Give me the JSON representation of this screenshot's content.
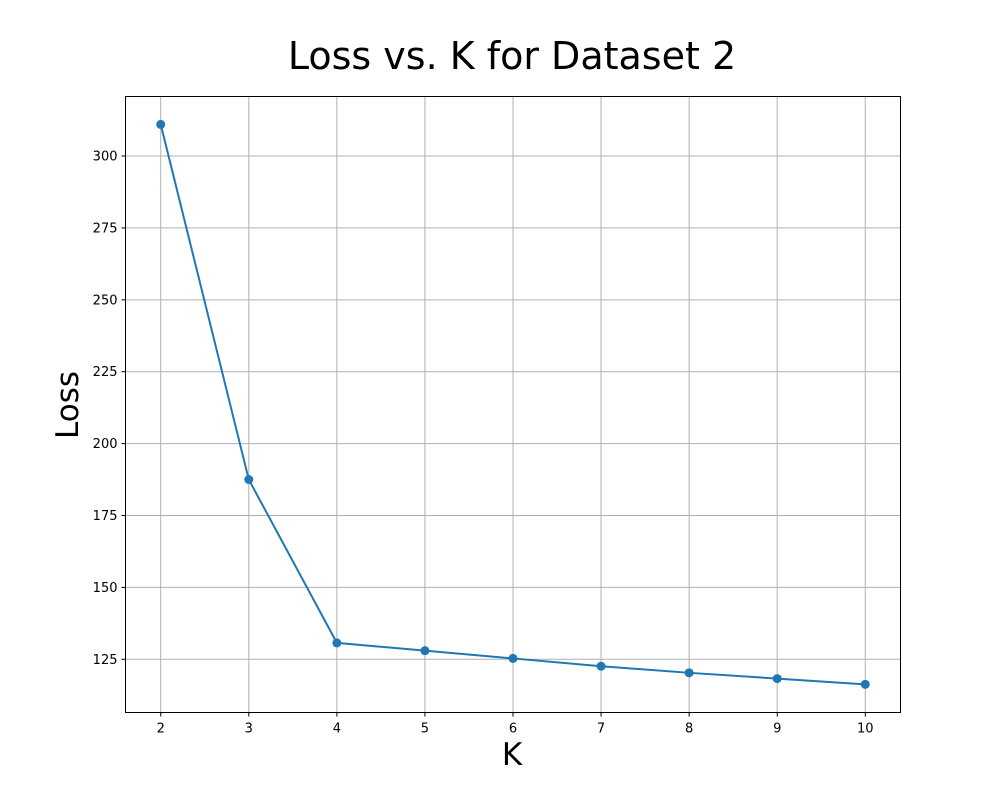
{
  "chart_data": {
    "type": "line",
    "title": "Loss vs. K for Dataset 2",
    "xlabel": "K",
    "ylabel": "Loss",
    "x": [
      2,
      3,
      4,
      5,
      6,
      7,
      8,
      9,
      10
    ],
    "series": [
      {
        "values": [
          311.0,
          187.5,
          130.7,
          128.0,
          125.3,
          122.6,
          120.3,
          118.3,
          116.3
        ],
        "color": "#1f77b4",
        "marker": "circle"
      }
    ],
    "xticks": [
      "2",
      "3",
      "4",
      "5",
      "6",
      "7",
      "8",
      "9",
      "10"
    ],
    "yticks": [
      "125",
      "150",
      "175",
      "200",
      "225",
      "250",
      "275",
      "300"
    ],
    "xlim": [
      1.6,
      10.4
    ],
    "ylim": [
      106.5,
      320.7
    ],
    "grid": true,
    "legend": "none"
  }
}
